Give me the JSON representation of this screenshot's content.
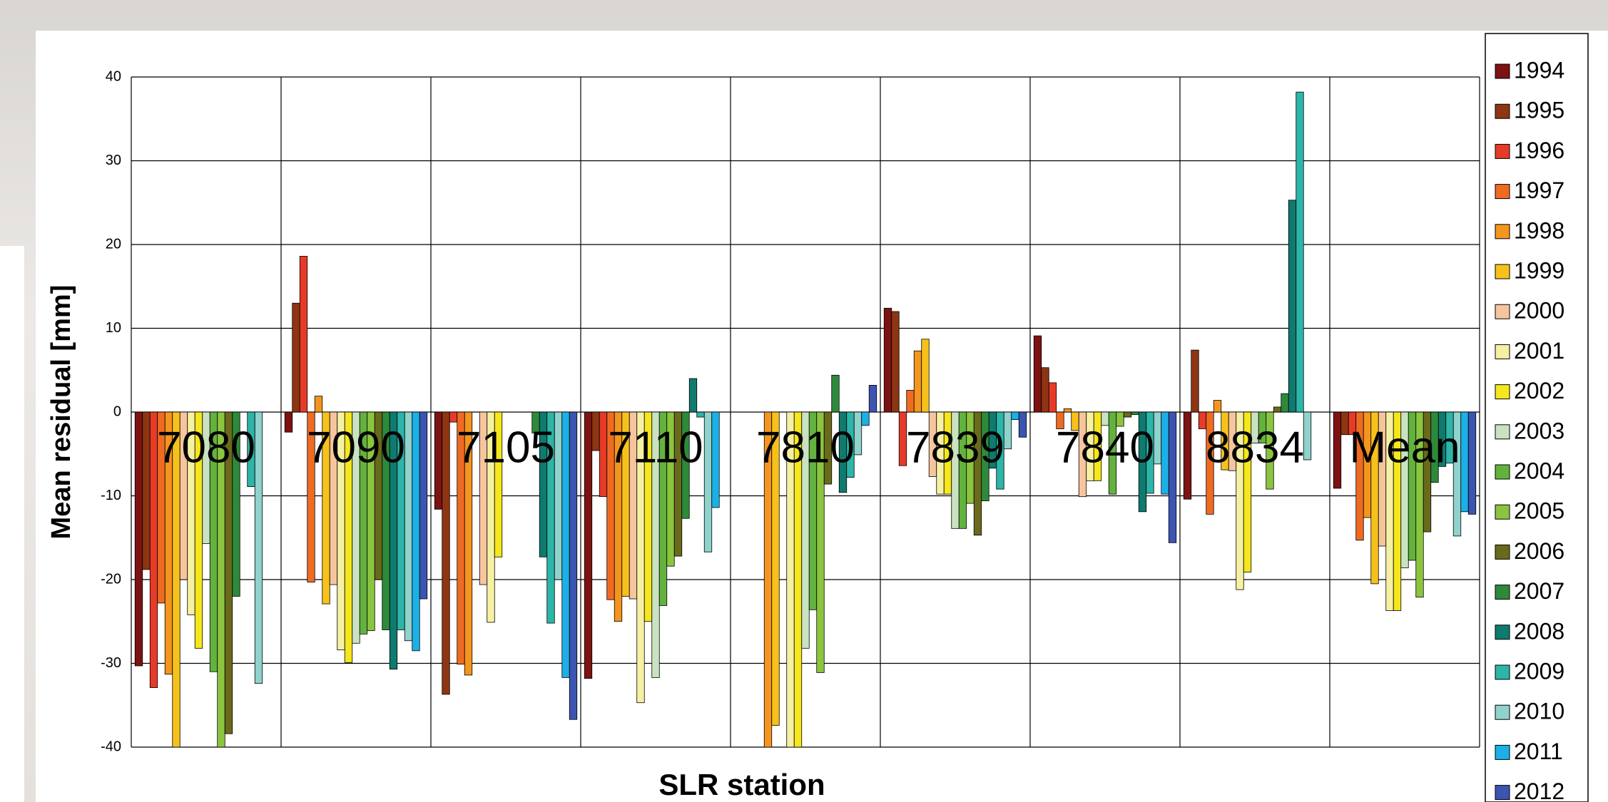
{
  "chart_data": {
    "type": "bar",
    "x_label": "SLR station",
    "y_label": "Mean residual [mm]",
    "categories": [
      "7080",
      "7090",
      "7105",
      "7110",
      "7810",
      "7839",
      "7840",
      "8834",
      "Mean"
    ],
    "ylim": [
      -40,
      40
    ],
    "yticks": [
      -40,
      -30,
      -20,
      -10,
      0,
      10,
      20,
      30,
      40
    ],
    "grid": true,
    "legend": "right",
    "series": [
      {
        "name": "1994",
        "color": "#7d1212",
        "values": [
          -30.3,
          -2.4,
          -11.6,
          -31.8,
          null,
          12.4,
          9.1,
          -10.4,
          -9.1
        ]
      },
      {
        "name": "1995",
        "color": "#8e3512",
        "values": [
          -18.8,
          13,
          -33.7,
          -4.6,
          null,
          12,
          5.3,
          7.4,
          -2.7
        ]
      },
      {
        "name": "1996",
        "color": "#e63b28",
        "values": [
          -32.9,
          18.6,
          -1.2,
          -10.1,
          null,
          -6.4,
          3.5,
          -2,
          -2.7
        ]
      },
      {
        "name": "1997",
        "color": "#ef6b22",
        "values": [
          -22.8,
          -20.3,
          -30.1,
          -22.4,
          null,
          2.6,
          -2,
          -12.2,
          -15.3
        ]
      },
      {
        "name": "1998",
        "color": "#f4951f",
        "values": [
          -31.3,
          1.9,
          -31.4,
          -25,
          -40,
          7.3,
          0.4,
          1.4,
          -12.6
        ]
      },
      {
        "name": "1999",
        "color": "#f7c11b",
        "values": [
          -40,
          -22.9,
          null,
          -22,
          -37.4,
          8.7,
          -2.2,
          -6.9,
          -20.5
        ]
      },
      {
        "name": "2000",
        "color": "#f6c59e",
        "values": [
          -20,
          -20.6,
          -20.6,
          -22.3,
          null,
          -7.7,
          -10.1,
          -7,
          -16
        ]
      },
      {
        "name": "2001",
        "color": "#f6f0a2",
        "values": [
          -24.2,
          -28.4,
          -25.1,
          -34.7,
          -40,
          -9.8,
          -8.2,
          -21.2,
          -23.7
        ]
      },
      {
        "name": "2002",
        "color": "#f5e61e",
        "values": [
          -28.2,
          -29.9,
          -17.3,
          -25,
          -40,
          -9.8,
          -8.2,
          -19.1,
          -23.7
        ]
      },
      {
        "name": "2003",
        "color": "#c9e2c1",
        "values": [
          -15.7,
          -27.6,
          null,
          -31.7,
          -28.2,
          -13.9,
          -1.6,
          -3.7,
          -18.6
        ]
      },
      {
        "name": "2004",
        "color": "#63b23e",
        "values": [
          -31,
          -26.5,
          null,
          -23.1,
          -23.6,
          -13.9,
          -9.8,
          -3.7,
          -17.7
        ]
      },
      {
        "name": "2005",
        "color": "#8bc53f",
        "values": [
          -40,
          -26.1,
          null,
          -18.4,
          -31.1,
          -10.9,
          -1.7,
          -9.2,
          -22.1
        ]
      },
      {
        "name": "2006",
        "color": "#6a6a1c",
        "values": [
          -38.4,
          -20,
          null,
          -17.2,
          -8.6,
          -14.7,
          -0.6,
          0.6,
          -14.3
        ]
      },
      {
        "name": "2007",
        "color": "#2d8a3a",
        "values": [
          -22,
          -26,
          -2.5,
          -12.7,
          4.4,
          -10.6,
          -0.3,
          2.2,
          -8.4
        ]
      },
      {
        "name": "2008",
        "color": "#0f7a6e",
        "values": [
          null,
          -30.7,
          -17.3,
          4,
          -9.6,
          -6.7,
          -11.9,
          25.3,
          -6.5
        ]
      },
      {
        "name": "2009",
        "color": "#2cb5a8",
        "values": [
          -8.9,
          -26,
          -25.2,
          -0.6,
          -7.8,
          -9.2,
          -9.7,
          38.2,
          -6.1
        ]
      },
      {
        "name": "2010",
        "color": "#90d2cc",
        "values": [
          -32.4,
          -27.3,
          -20,
          -16.7,
          -5.1,
          -4.4,
          -6.2,
          -5.7,
          -14.8
        ]
      },
      {
        "name": "2011",
        "color": "#1cb0e6",
        "values": [
          null,
          -28.5,
          -31.7,
          -11.4,
          -1.6,
          -0.9,
          -9.8,
          null,
          -11.9
        ]
      },
      {
        "name": "2012",
        "color": "#3b55b0",
        "values": [
          null,
          -22.3,
          -36.7,
          null,
          3.2,
          -3,
          -15.6,
          null,
          -12.2
        ]
      }
    ]
  }
}
